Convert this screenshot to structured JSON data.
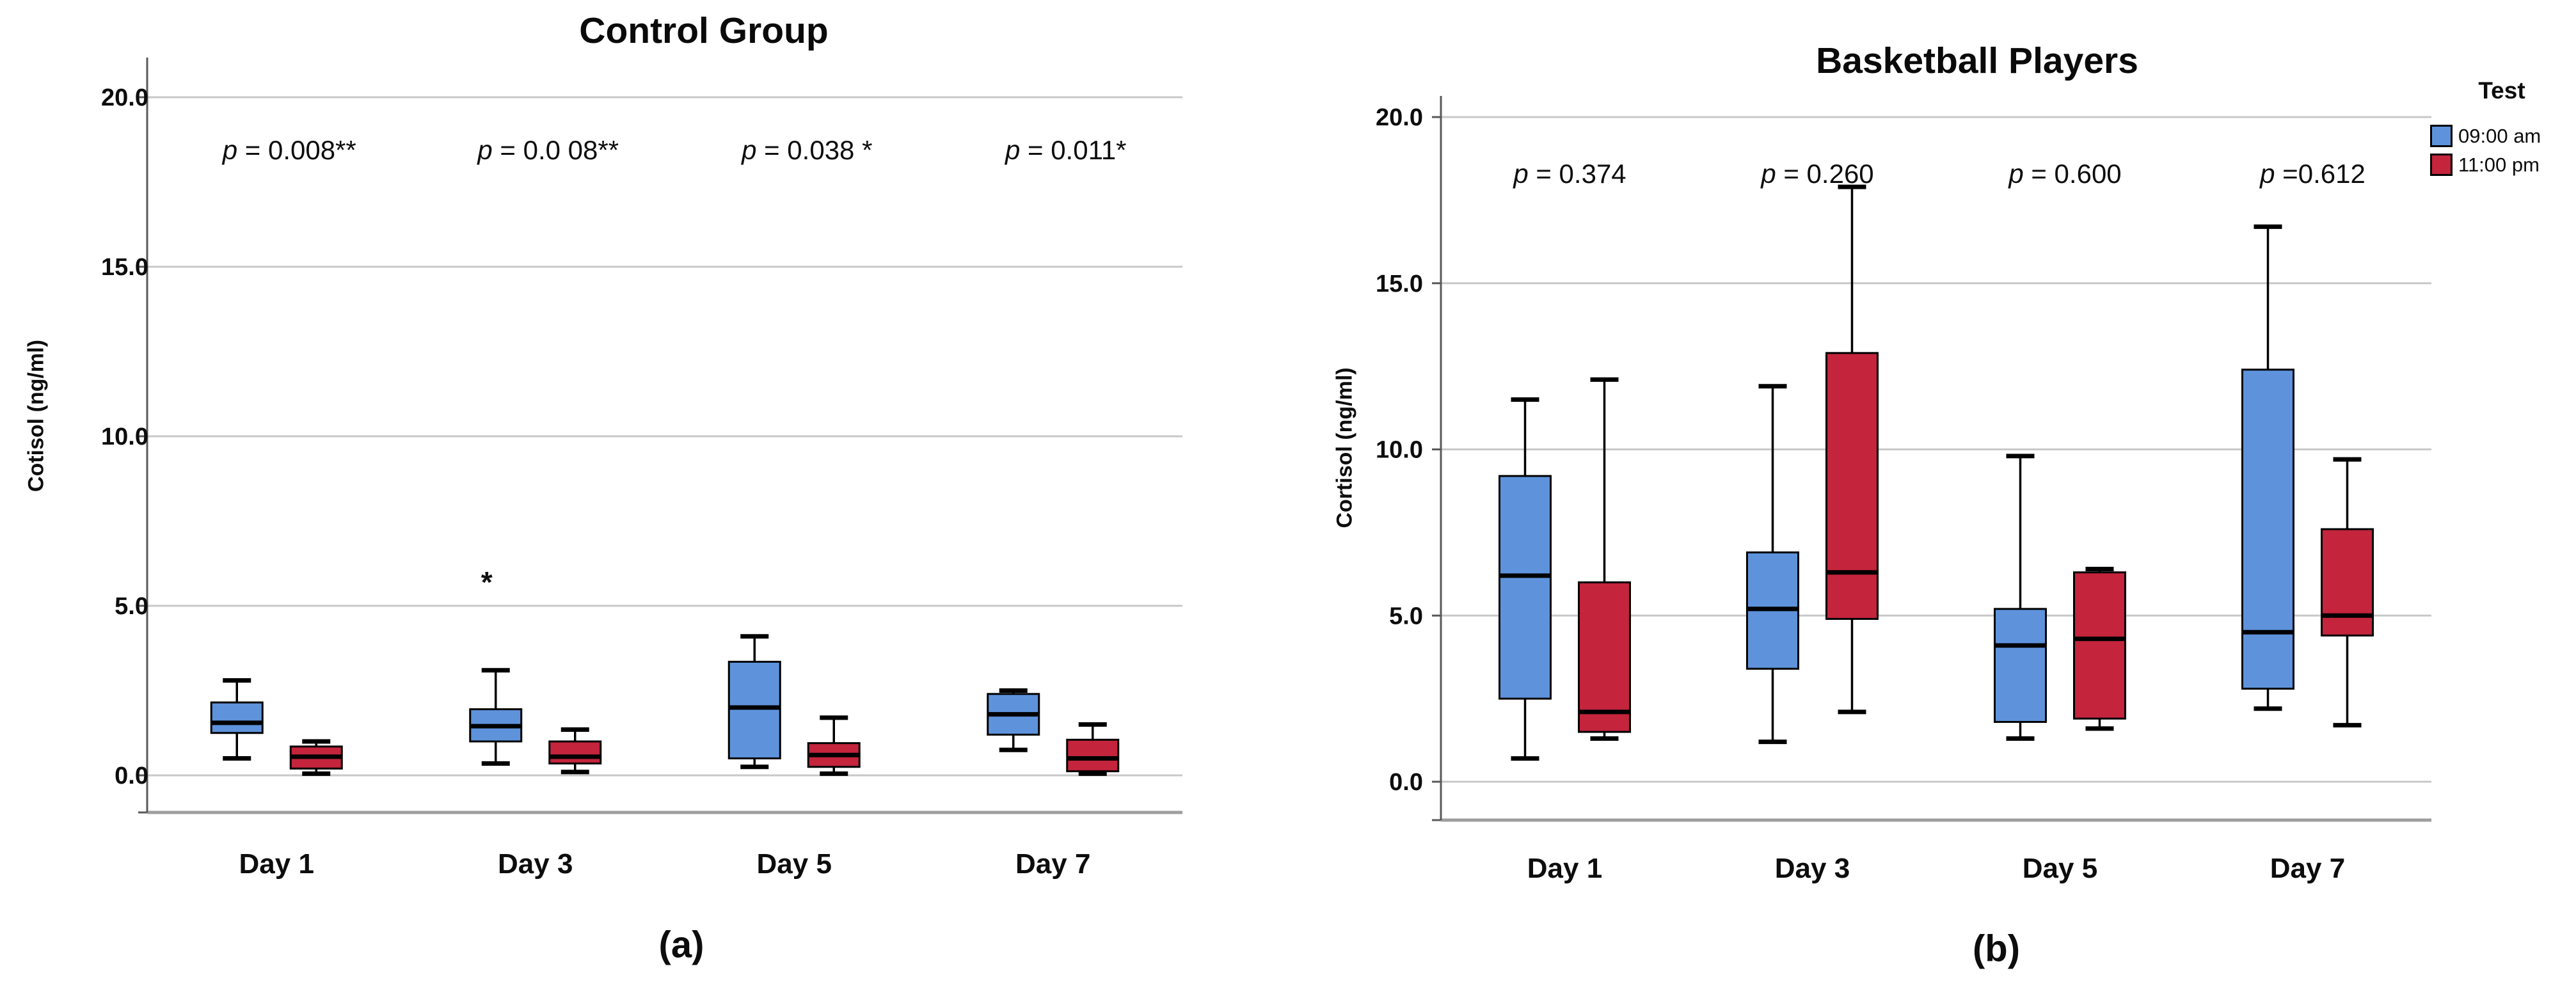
{
  "figure": {
    "background": "#ffffff"
  },
  "colors": {
    "series_blue": "#5E93DC",
    "series_red": "#C4243C",
    "grid_line": "#c8c8c8",
    "frame_line": "#9e9e9e",
    "axis_line": "#58595b",
    "text": "#0d0d0d"
  },
  "legend": {
    "title": "Test",
    "items": [
      {
        "label": "09:00 am",
        "color": "series_blue"
      },
      {
        "label": "11:00 pm",
        "color": "series_red"
      }
    ]
  },
  "chart_data": [
    {
      "type": "boxplot",
      "panel": "a",
      "title": "Control Group",
      "caption": "(a)",
      "ylabel": "Cotisol (ng/ml)",
      "xlabel": "",
      "ylim": [
        0,
        20
      ],
      "yticks": [
        0,
        5,
        10,
        15,
        20
      ],
      "ytick_labels": [
        "0.0",
        "5.0",
        "10.0",
        "15.0",
        "20.0"
      ],
      "grid": true,
      "categories": [
        "Day 1",
        "Day 3",
        "Day 5",
        "Day 7"
      ],
      "p_values": [
        "p = 0.008**",
        "p = 0.0 08**",
        "p = 0.038 *",
        "p = 0.011*"
      ],
      "series": [
        {
          "name": "09:00 am",
          "color": "series_blue",
          "boxes": [
            {
              "min": 0.5,
              "q1": 1.25,
              "median": 1.55,
              "q3": 2.15,
              "max": 2.8,
              "outliers": []
            },
            {
              "min": 0.35,
              "q1": 1.0,
              "median": 1.45,
              "q3": 1.95,
              "max": 3.1,
              "outliers": [
                5.7
              ]
            },
            {
              "min": 0.25,
              "q1": 0.5,
              "median": 2.0,
              "q3": 3.35,
              "max": 4.1,
              "outliers": []
            },
            {
              "min": 0.75,
              "q1": 1.2,
              "median": 1.8,
              "q3": 2.4,
              "max": 2.5,
              "outliers": []
            }
          ]
        },
        {
          "name": "11:00 pm",
          "color": "series_red",
          "boxes": [
            {
              "min": 0.05,
              "q1": 0.2,
              "median": 0.55,
              "q3": 0.85,
              "max": 1.0,
              "outliers": []
            },
            {
              "min": 0.1,
              "q1": 0.35,
              "median": 0.55,
              "q3": 1.0,
              "max": 1.35,
              "outliers": []
            },
            {
              "min": 0.05,
              "q1": 0.25,
              "median": 0.6,
              "q3": 0.95,
              "max": 1.7,
              "outliers": []
            },
            {
              "min": 0.05,
              "q1": 0.12,
              "median": 0.5,
              "q3": 1.05,
              "max": 1.5,
              "outliers": []
            }
          ]
        }
      ]
    },
    {
      "type": "boxplot",
      "panel": "b",
      "title": "Basketball Players",
      "caption": "(b)",
      "ylabel": "Cortisol (ng/ml)",
      "xlabel": "",
      "ylim": [
        0,
        20
      ],
      "yticks": [
        0,
        5,
        10,
        15,
        20
      ],
      "ytick_labels": [
        "0.0",
        "5.0",
        "10.0",
        "15.0",
        "20.0"
      ],
      "grid": true,
      "legend_position": "top-right",
      "categories": [
        "Day 1",
        "Day 3",
        "Day 5",
        "Day 7"
      ],
      "p_values": [
        "p = 0.374",
        "p = 0.260",
        "p = 0.600",
        "p =0.612"
      ],
      "series": [
        {
          "name": "09:00 am",
          "color": "series_blue",
          "boxes": [
            {
              "min": 0.7,
              "q1": 2.5,
              "median": 6.2,
              "q3": 9.2,
              "max": 11.5,
              "outliers": []
            },
            {
              "min": 1.2,
              "q1": 3.4,
              "median": 5.2,
              "q3": 6.9,
              "max": 11.9,
              "outliers": []
            },
            {
              "min": 1.3,
              "q1": 1.8,
              "median": 4.1,
              "q3": 5.2,
              "max": 9.8,
              "outliers": []
            },
            {
              "min": 2.2,
              "q1": 2.8,
              "median": 4.5,
              "q3": 12.4,
              "max": 16.7,
              "outliers": []
            }
          ]
        },
        {
          "name": "11:00 pm",
          "color": "series_red",
          "boxes": [
            {
              "min": 1.3,
              "q1": 1.5,
              "median": 2.1,
              "q3": 6.0,
              "max": 12.1,
              "outliers": []
            },
            {
              "min": 2.1,
              "q1": 4.9,
              "median": 6.3,
              "q3": 12.9,
              "max": 17.9,
              "outliers": []
            },
            {
              "min": 1.6,
              "q1": 1.9,
              "median": 4.3,
              "q3": 6.3,
              "max": 6.4,
              "outliers": []
            },
            {
              "min": 1.7,
              "q1": 4.4,
              "median": 5.0,
              "q3": 7.6,
              "max": 9.7,
              "outliers": []
            }
          ]
        }
      ]
    }
  ]
}
